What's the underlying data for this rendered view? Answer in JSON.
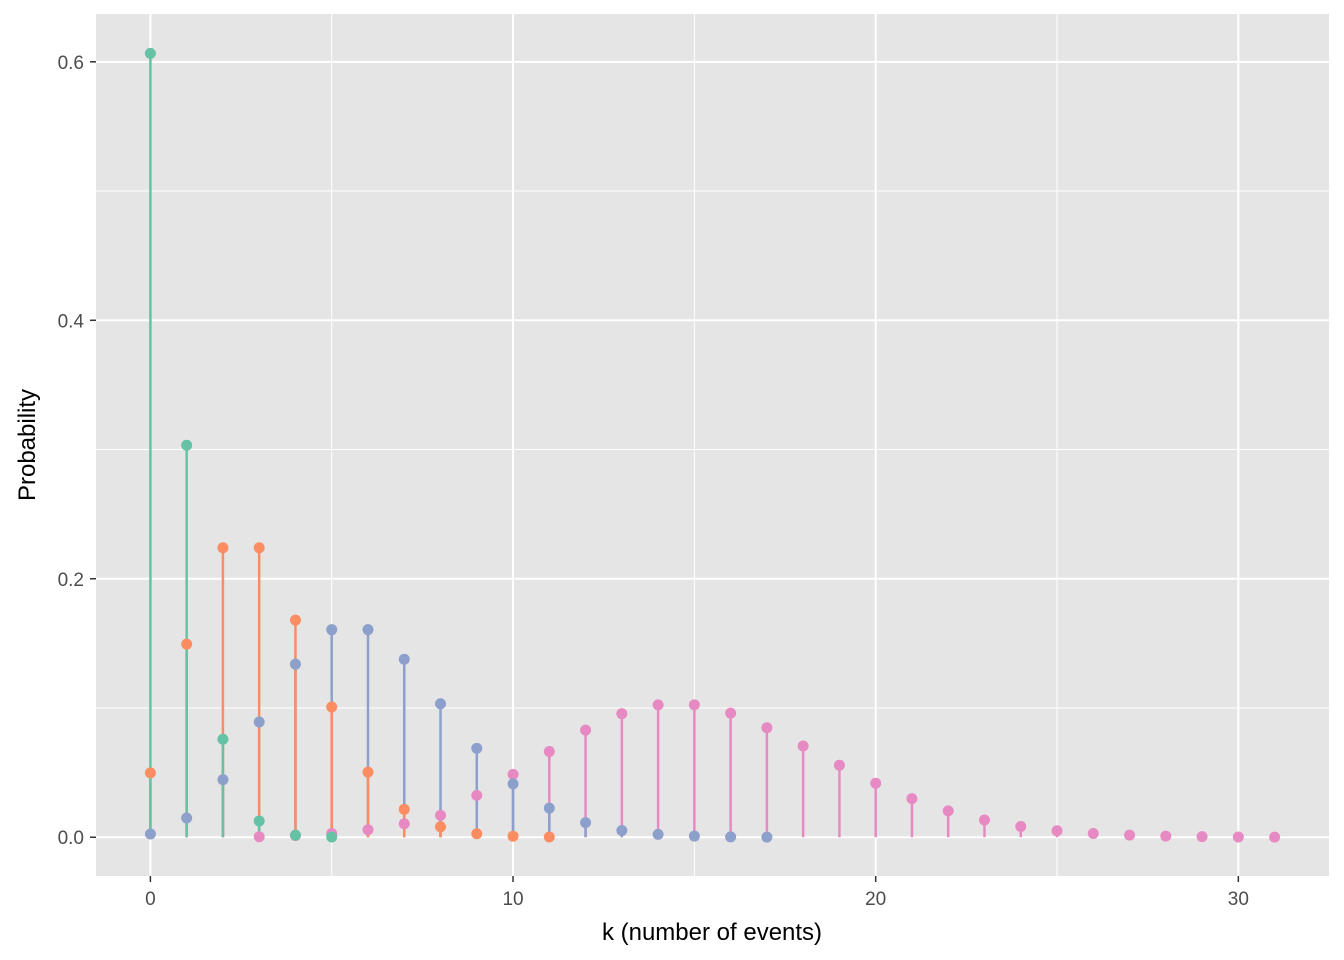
{
  "chart_data": {
    "type": "lollipop",
    "title": "",
    "xlabel": "k (number of events)",
    "ylabel": "Probability",
    "xlim": [
      -1.5,
      32.5
    ],
    "ylim": [
      -0.03,
      0.637
    ],
    "x_ticks": [
      0,
      10,
      20,
      30
    ],
    "x_minor": [
      5,
      15,
      25
    ],
    "y_ticks": [
      0.0,
      0.2,
      0.4,
      0.6
    ],
    "y_tick_labels": [
      "0.0",
      "0.2",
      "0.4",
      "0.6"
    ],
    "y_minor": [
      0.1,
      0.3,
      0.5
    ],
    "grid": true,
    "legend": "none",
    "panel_background": "#e5e5e5",
    "grid_color": "#ffffff",
    "series": [
      {
        "color": "#e78ac3",
        "x": [
          3,
          4,
          5,
          6,
          7,
          8,
          9,
          10,
          11,
          12,
          13,
          14,
          15,
          16,
          17,
          18,
          19,
          20,
          21,
          22,
          23,
          24,
          25,
          26,
          27,
          28,
          29,
          30,
          31
        ],
        "values": [
          0.0004,
          0.0013,
          0.0029,
          0.0058,
          0.0104,
          0.0169,
          0.0324,
          0.0486,
          0.0663,
          0.0829,
          0.0956,
          0.1024,
          0.1024,
          0.096,
          0.0847,
          0.0706,
          0.0557,
          0.0418,
          0.0299,
          0.0204,
          0.0133,
          0.0083,
          0.005,
          0.0029,
          0.0016,
          0.0009,
          0.0005,
          0.0002,
          0.0001
        ]
      },
      {
        "color": "#8da0cb",
        "x": [
          0,
          1,
          2,
          3,
          4,
          5,
          6,
          7,
          8,
          9,
          10,
          11,
          12,
          13,
          14,
          15,
          16,
          17
        ],
        "values": [
          0.0025,
          0.0149,
          0.0446,
          0.0892,
          0.1339,
          0.1606,
          0.1606,
          0.1377,
          0.1033,
          0.0688,
          0.0413,
          0.0225,
          0.0113,
          0.0052,
          0.0022,
          0.0009,
          0.0003,
          0.0001
        ]
      },
      {
        "color": "#fc8d62",
        "x": [
          0,
          1,
          2,
          3,
          4,
          5,
          6,
          7,
          8,
          9,
          10,
          11
        ],
        "values": [
          0.0498,
          0.1494,
          0.224,
          0.224,
          0.168,
          0.1008,
          0.0504,
          0.0216,
          0.0081,
          0.0027,
          0.0008,
          0.0002
        ]
      },
      {
        "color": "#66c2a5",
        "x": [
          0,
          1,
          2,
          3,
          4,
          5
        ],
        "values": [
          0.6065,
          0.3033,
          0.0758,
          0.0126,
          0.0016,
          0.0002
        ]
      }
    ]
  }
}
